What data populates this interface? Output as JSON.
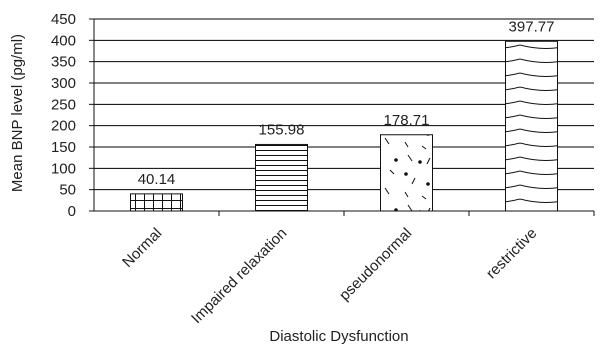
{
  "chart_data": {
    "type": "bar",
    "categories": [
      "Normal",
      "Impaired relaxation",
      "pseudonormal",
      "restrictive"
    ],
    "values": [
      40.14,
      155.98,
      178.71,
      397.77
    ],
    "value_labels": [
      "40.14",
      "155.98",
      "178.71",
      "397.77"
    ],
    "xlabel": "Diastolic Dysfunction",
    "ylabel": "Mean BNP level (pg/ml)",
    "ylim": [
      0,
      450
    ],
    "yticks": [
      0,
      50,
      100,
      150,
      200,
      250,
      300,
      350,
      400,
      450
    ],
    "grid": true,
    "bar_patterns": [
      "grid",
      "horizontal-lines",
      "dots-dashes",
      "curved-lines"
    ],
    "colors": {
      "bar_fill": "#ffffff",
      "bar_stroke": "#111111",
      "grid": "#000000",
      "text": "#222222"
    }
  }
}
